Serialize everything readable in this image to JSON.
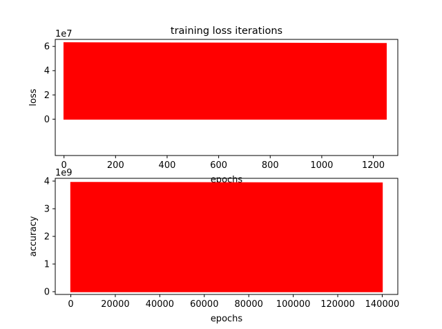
{
  "chart_data": [
    {
      "type": "area",
      "title": "training loss iterations",
      "xlabel": "epochs",
      "ylabel": "loss",
      "y_offset_label": "1e7",
      "xlim": [
        -34,
        1295
      ],
      "ylim": [
        -30000000,
        65800000
      ],
      "x_ticks": [
        0,
        200,
        400,
        600,
        800,
        1000,
        1200
      ],
      "x_tick_labels": [
        "0",
        "200",
        "400",
        "600",
        "800",
        "1000",
        "1200"
      ],
      "y_ticks": [
        0,
        20000000,
        40000000,
        60000000
      ],
      "y_tick_labels": [
        "0",
        "2",
        "4",
        "6"
      ],
      "grid": false,
      "series": [
        {
          "color": "#ff0000",
          "x": [
            0,
            1250
          ],
          "y_min": [
            0,
            0
          ],
          "y_max": [
            63000000,
            62400000
          ]
        }
      ]
    },
    {
      "type": "area",
      "title": "",
      "xlabel": "epochs",
      "ylabel": "accuracy",
      "y_offset_label": "1e9",
      "xlim": [
        -7000,
        147000
      ],
      "ylim": [
        -100000000,
        4100000000
      ],
      "x_ticks": [
        0,
        20000,
        40000,
        60000,
        80000,
        100000,
        120000,
        140000
      ],
      "x_tick_labels": [
        "0",
        "20000",
        "40000",
        "60000",
        "80000",
        "100000",
        "120000",
        "140000"
      ],
      "y_ticks": [
        0,
        1000000000,
        2000000000,
        3000000000,
        4000000000
      ],
      "y_tick_labels": [
        "0",
        "1",
        "2",
        "3",
        "4"
      ],
      "grid": false,
      "series": [
        {
          "color": "#ff0000",
          "x": [
            0,
            140000
          ],
          "y_min": [
            0,
            0
          ],
          "y_max": [
            3950000000,
            3930000000
          ]
        }
      ]
    }
  ]
}
